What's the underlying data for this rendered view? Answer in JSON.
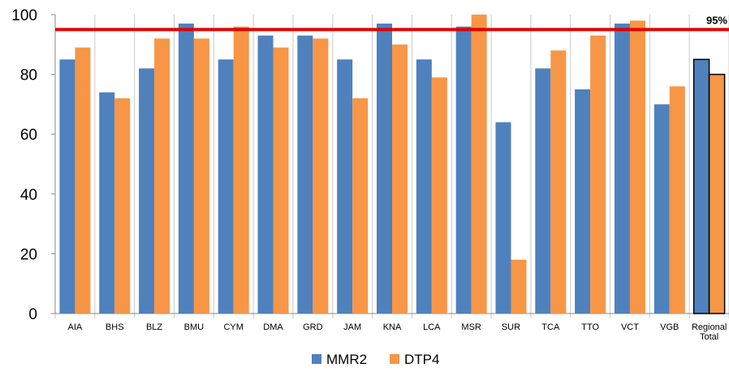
{
  "chart_data": {
    "type": "bar",
    "categories": [
      "AIA",
      "BHS",
      "BLZ",
      "BMU",
      "CYM",
      "DMA",
      "GRD",
      "JAM",
      "KNA",
      "LCA",
      "MSR",
      "SUR",
      "TCA",
      "TTO",
      "VCT",
      "VGB",
      "Regional Total"
    ],
    "series": [
      {
        "name": "MMR2",
        "color": "#4F81BD",
        "values": [
          85,
          74,
          82,
          97,
          85,
          93,
          93,
          85,
          97,
          85,
          96,
          64,
          82,
          75,
          97,
          70,
          85
        ]
      },
      {
        "name": "DTP4",
        "color": "#F79646",
        "values": [
          89,
          72,
          92,
          92,
          96,
          89,
          92,
          72,
          90,
          79,
          100,
          18,
          88,
          93,
          98,
          76,
          80
        ]
      }
    ],
    "ylim": [
      0,
      100
    ],
    "yticks": [
      0,
      20,
      40,
      60,
      80,
      100
    ],
    "reference_line": {
      "value": 95,
      "label": "95%",
      "color": "#E00000"
    },
    "highlight_last_category": true,
    "legend_position": "bottom-center",
    "grid": "vertical-category-separators",
    "title": "",
    "xlabel": "",
    "ylabel": ""
  }
}
